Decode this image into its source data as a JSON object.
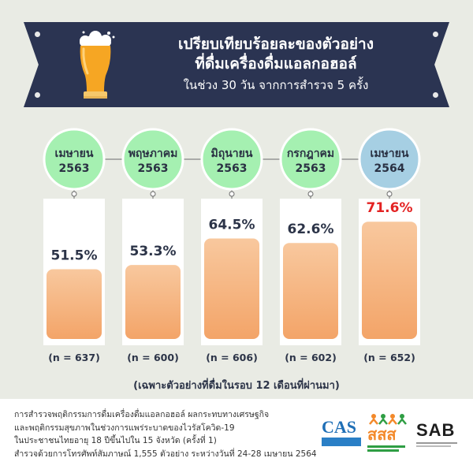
{
  "banner": {
    "title_line1": "เปรียบเทียบร้อยละของตัวอย่าง",
    "title_line2": "ที่ดื่มเครื่องดื่มแอลกอฮอล์",
    "subtitle": "ในช่วง 30 วัน จากการสำรวจ 5 ครั้ง"
  },
  "chart_data": {
    "type": "bar",
    "categories": [
      [
        "เมษายน",
        "2563"
      ],
      [
        "พฤษภาคม",
        "2563"
      ],
      [
        "มิถุนายน",
        "2563"
      ],
      [
        "กรกฎาคม",
        "2563"
      ],
      [
        "เมษายน",
        "2564"
      ]
    ],
    "values": [
      51.5,
      53.3,
      64.5,
      62.6,
      71.6
    ],
    "value_labels": [
      "51.5%",
      "53.3%",
      "64.5%",
      "62.6%",
      "71.6%"
    ],
    "sample_sizes": [
      "(n = 637)",
      "(n = 600)",
      "(n = 606)",
      "(n = 602)",
      "(n = 652)"
    ],
    "ylim": [
      0,
      100
    ],
    "highlight_index": 4,
    "colors": {
      "circle": "#a5f0b1",
      "circle_highlight": "#a6cfe3",
      "bar": "#f3a468",
      "bar_top": "#f8c89e",
      "value_text": "#2c3448",
      "value_highlight": "#e32222",
      "panel": "#ffffff",
      "connector": "#6b6b6b"
    }
  },
  "note": "(เฉพาะตัวอย่างที่ดื่มในรอบ 12 เดือนที่ผ่านมา)",
  "footer": {
    "lines": [
      "การสำรวจพฤติกรรมการดื่มเครื่องดื่มแอลกอฮอล์ ผลกระทบทางเศรษฐกิจ",
      "และพฤติกรรมสุขภาพในช่วงการแพร่ระบาดของไวรัสโควิด-19",
      "ในประชาชนไทยอายุ 18 ปีขึ้นไปใน 15 จังหวัด (ครั้งที่ 1)",
      "สำรวจด้วยการโทรศัพท์สัมภาษณ์ 1,555 ตัวอย่าง ระหว่างวันที่ 24-28 เมษายน 2564"
    ],
    "logos": {
      "cas": "CAS",
      "thaihealth": "สสส",
      "sab": "SAB"
    }
  },
  "icons": {
    "beer": "beer-glass-icon"
  }
}
